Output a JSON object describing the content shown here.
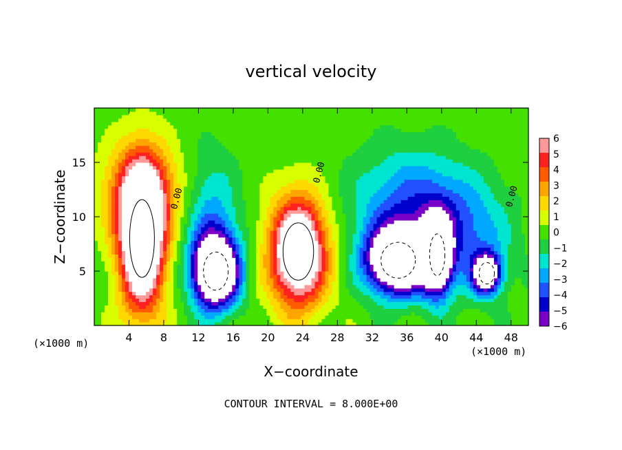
{
  "chart_data": {
    "type": "heatmap",
    "title": "vertical velocity",
    "xlabel": "X−coordinate",
    "ylabel": "Z−coordinate",
    "x_unit_left": "(×1000 m)",
    "x_unit_right": "(×1000 m)",
    "footer": "CONTOUR INTERVAL = 8.000E+00",
    "xlim": [
      0,
      50
    ],
    "ylim": [
      0,
      20
    ],
    "x_ticks": [
      4,
      8,
      12,
      16,
      20,
      24,
      28,
      32,
      36,
      40,
      44,
      48
    ],
    "x_tick_labels": [
      "4",
      "8",
      "12",
      "16",
      "20",
      "24",
      "28",
      "32",
      "36",
      "40",
      "44",
      "48"
    ],
    "y_ticks": [
      5,
      10,
      15
    ],
    "y_tick_labels": [
      "5",
      "10",
      "15"
    ],
    "colorbar": {
      "levels": [
        6,
        5,
        4,
        3,
        2,
        1,
        0,
        -1,
        -2,
        -3,
        -4,
        -5,
        -6
      ],
      "labels": [
        "6",
        "5",
        "4",
        "3",
        "2",
        "1",
        "0",
        "−1",
        "−2",
        "−3",
        "−4",
        "−5",
        "−6"
      ],
      "colors": [
        "#ff9999",
        "#ff2020",
        "#ff5a00",
        "#ffa500",
        "#ffd800",
        "#d8ff00",
        "#44e000",
        "#1ecf40",
        "#00e5d0",
        "#00a8ff",
        "#2050ff",
        "#0000cc",
        "#7a00c8"
      ]
    },
    "contour_label": "0.00",
    "updrafts": [
      {
        "x": 5.5,
        "z": 8.0,
        "w": 2.6,
        "h": 6.5,
        "peak": 12
      },
      {
        "x": 23.5,
        "z": 6.8,
        "w": 3.2,
        "h": 4.8,
        "peak": 11
      },
      {
        "x": 5.5,
        "z": 12.5,
        "w": 4.5,
        "h": 4.0,
        "peak": 4
      }
    ],
    "downdrafts": [
      {
        "x": 14.0,
        "z": 5.0,
        "w": 2.6,
        "h": 3.2,
        "peak": -12
      },
      {
        "x": 35.0,
        "z": 6.0,
        "w": 3.6,
        "h": 3.0,
        "peak": -12
      },
      {
        "x": 39.5,
        "z": 6.5,
        "w": 1.6,
        "h": 3.5,
        "peak": -10
      },
      {
        "x": 45.2,
        "z": 4.8,
        "w": 1.6,
        "h": 1.8,
        "peak": -9
      },
      {
        "x": 36.5,
        "z": 11.0,
        "w": 6.5,
        "h": 5.0,
        "peak": -4
      },
      {
        "x": 13.5,
        "z": 9.5,
        "w": 3.0,
        "h": 6.0,
        "peak": -3
      },
      {
        "x": 43.0,
        "z": 8.0,
        "w": 5.0,
        "h": 5.0,
        "peak": -3
      }
    ]
  }
}
